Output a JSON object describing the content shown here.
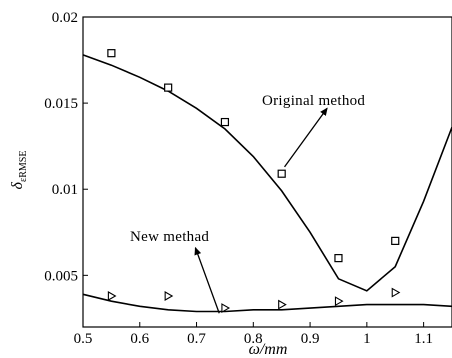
{
  "chart_data": {
    "type": "scatter",
    "title": "",
    "xlabel": "ω/mm",
    "ylabel": "δ",
    "ylabel_sub": "εRMSE",
    "xlim": [
      0.5,
      1.15
    ],
    "ylim": [
      0.002,
      0.02
    ],
    "xticks": [
      0.5,
      0.6,
      0.7,
      0.8,
      0.9,
      1.0,
      1.1
    ],
    "xtick_labels": [
      "0.5",
      "0.6",
      "0.7",
      "0.8",
      "0.9",
      "1",
      "1.1"
    ],
    "yticks": [
      0.005,
      0.01,
      0.015,
      0.02
    ],
    "ytick_labels": [
      "0.005",
      "0.01",
      "0.015",
      "0.02"
    ],
    "grid": false,
    "series": [
      {
        "label": "Original method",
        "kind": "line",
        "color": "#000000",
        "x": [
          0.5,
          0.55,
          0.6,
          0.65,
          0.7,
          0.75,
          0.8,
          0.85,
          0.9,
          0.95,
          1.0,
          1.05,
          1.1,
          1.15
        ],
        "y": [
          0.0178,
          0.0172,
          0.0165,
          0.0157,
          0.0147,
          0.0135,
          0.0119,
          0.0099,
          0.0075,
          0.0048,
          0.0041,
          0.0055,
          0.0093,
          0.0136
        ]
      },
      {
        "label": "Original method",
        "kind": "markers",
        "marker": "square",
        "color": "#000000",
        "x": [
          0.55,
          0.65,
          0.75,
          0.85,
          0.95,
          1.05
        ],
        "y": [
          0.0179,
          0.0159,
          0.0139,
          0.0109,
          0.006,
          0.007
        ]
      },
      {
        "label": "New methad",
        "kind": "line",
        "color": "#000000",
        "x": [
          0.5,
          0.55,
          0.6,
          0.65,
          0.7,
          0.75,
          0.8,
          0.85,
          0.9,
          0.95,
          1.0,
          1.05,
          1.1,
          1.15
        ],
        "y": [
          0.0039,
          0.0035,
          0.0032,
          0.003,
          0.0029,
          0.0029,
          0.003,
          0.003,
          0.0031,
          0.0032,
          0.0033,
          0.0033,
          0.0033,
          0.0032
        ]
      },
      {
        "label": "New methad",
        "kind": "markers",
        "marker": "triangle-right",
        "color": "#000000",
        "x": [
          0.55,
          0.65,
          0.75,
          0.85,
          0.95,
          1.05
        ],
        "y": [
          0.0038,
          0.0038,
          0.0031,
          0.0033,
          0.0035,
          0.004
        ]
      }
    ],
    "annotations": [
      {
        "text": "Original method",
        "arrow_from": [
          0.855,
          0.0113
        ],
        "arrow_to": [
          0.93,
          0.0147
        ]
      },
      {
        "text": "New methad",
        "arrow_from": [
          0.74,
          0.0028
        ],
        "arrow_to": [
          0.698,
          0.0066
        ]
      }
    ]
  }
}
